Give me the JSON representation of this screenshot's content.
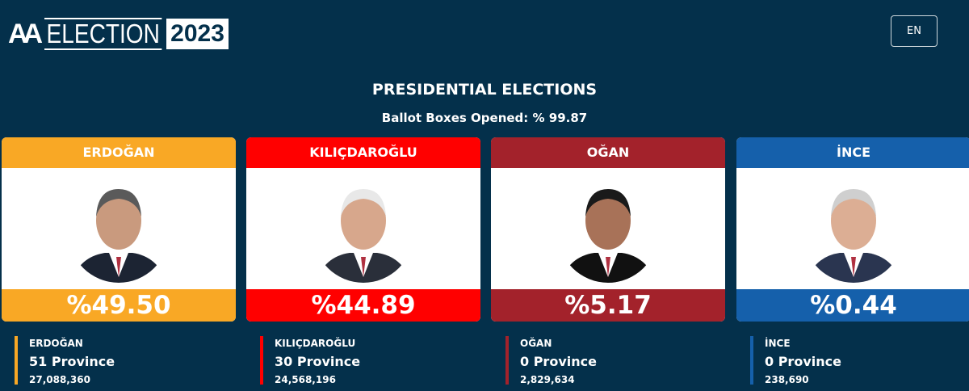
{
  "header": {
    "logo_aa": "AA",
    "logo_word": "ELECTION",
    "logo_year": "2023",
    "lang_button": "EN"
  },
  "title": "PRESIDENTIAL ELECTIONS",
  "subtitle": "Ballot Boxes Opened: % 99.87",
  "candidates": [
    {
      "name": "ERDOĞAN",
      "percent": "%49.50",
      "provinces": "51 Province",
      "votes": "27,088,360",
      "color": "#f9a825"
    },
    {
      "name": "KILIÇDAROĞLU",
      "percent": "%44.89",
      "provinces": "30 Province",
      "votes": "24,568,196",
      "color": "#ff0000"
    },
    {
      "name": "OĞAN",
      "percent": "%5.17",
      "provinces": "0 Province",
      "votes": "2,829,634",
      "color": "#a3222b"
    },
    {
      "name": "İNCE",
      "percent": "%0.44",
      "provinces": "0 Province",
      "votes": "238,690",
      "color": "#1560ab"
    }
  ]
}
